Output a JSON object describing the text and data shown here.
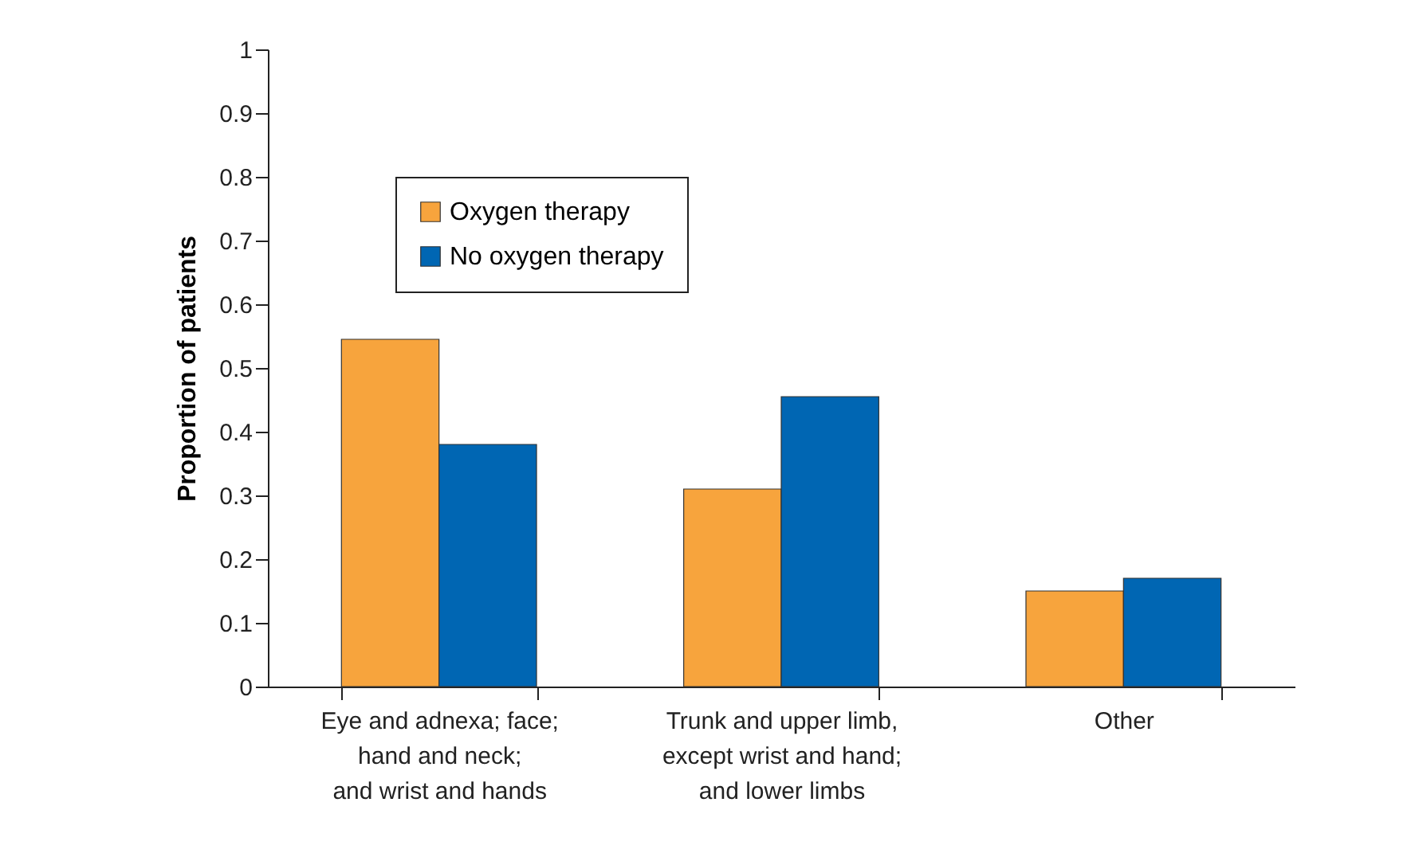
{
  "chart_data": {
    "type": "bar",
    "ylabel": "Proportion of patients",
    "categories": [
      "Eye and adnexa; face;\nhand and neck;\nand wrist and hands",
      "Trunk and upper limb,\nexcept wrist and hand;\nand lower limbs",
      "Other"
    ],
    "series": [
      {
        "name": "Oxygen therapy",
        "color": "#f7a43d",
        "values": [
          0.545,
          0.31,
          0.15
        ]
      },
      {
        "name": "No oxygen therapy",
        "color": "#0066b3",
        "values": [
          0.38,
          0.455,
          0.17
        ]
      }
    ],
    "ylim": [
      0,
      1
    ],
    "yticks": [
      0,
      0.1,
      0.2,
      0.3,
      0.4,
      0.5,
      0.6,
      0.7,
      0.8,
      0.9,
      1
    ],
    "grid": false,
    "legend": "top left"
  }
}
